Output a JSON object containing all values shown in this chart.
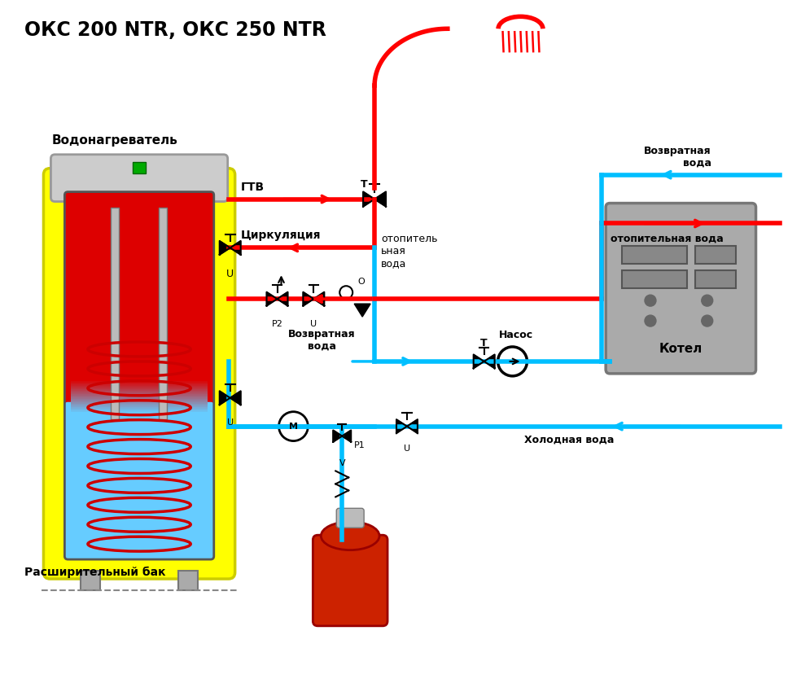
{
  "title": "ОКС 200 NTR, ОКС 250 NTR",
  "bg_color": "#ffffff",
  "red_color": "#ff0000",
  "blue_color": "#00bfff",
  "yellow_color": "#ffff00",
  "labels": {
    "vodonagrevatell": "Водонагреватель",
    "gtv": "ГТВ",
    "cirkulyaciya": "Циркуляция",
    "vozvratnaya_voda_top": "Возвратная\nвода",
    "otopitelnaya_voda_label": "отопитель\nьная\nвода",
    "otopitelnaya_voda": "отопительная вода",
    "vozvratnaya_voda_bot": "Возвратная\nвода",
    "holodnaya_voda": "Холодная вода",
    "nasos": "Насос",
    "kotel": "Котел",
    "rasshiritelniy_bak": "Расширительный бак"
  }
}
